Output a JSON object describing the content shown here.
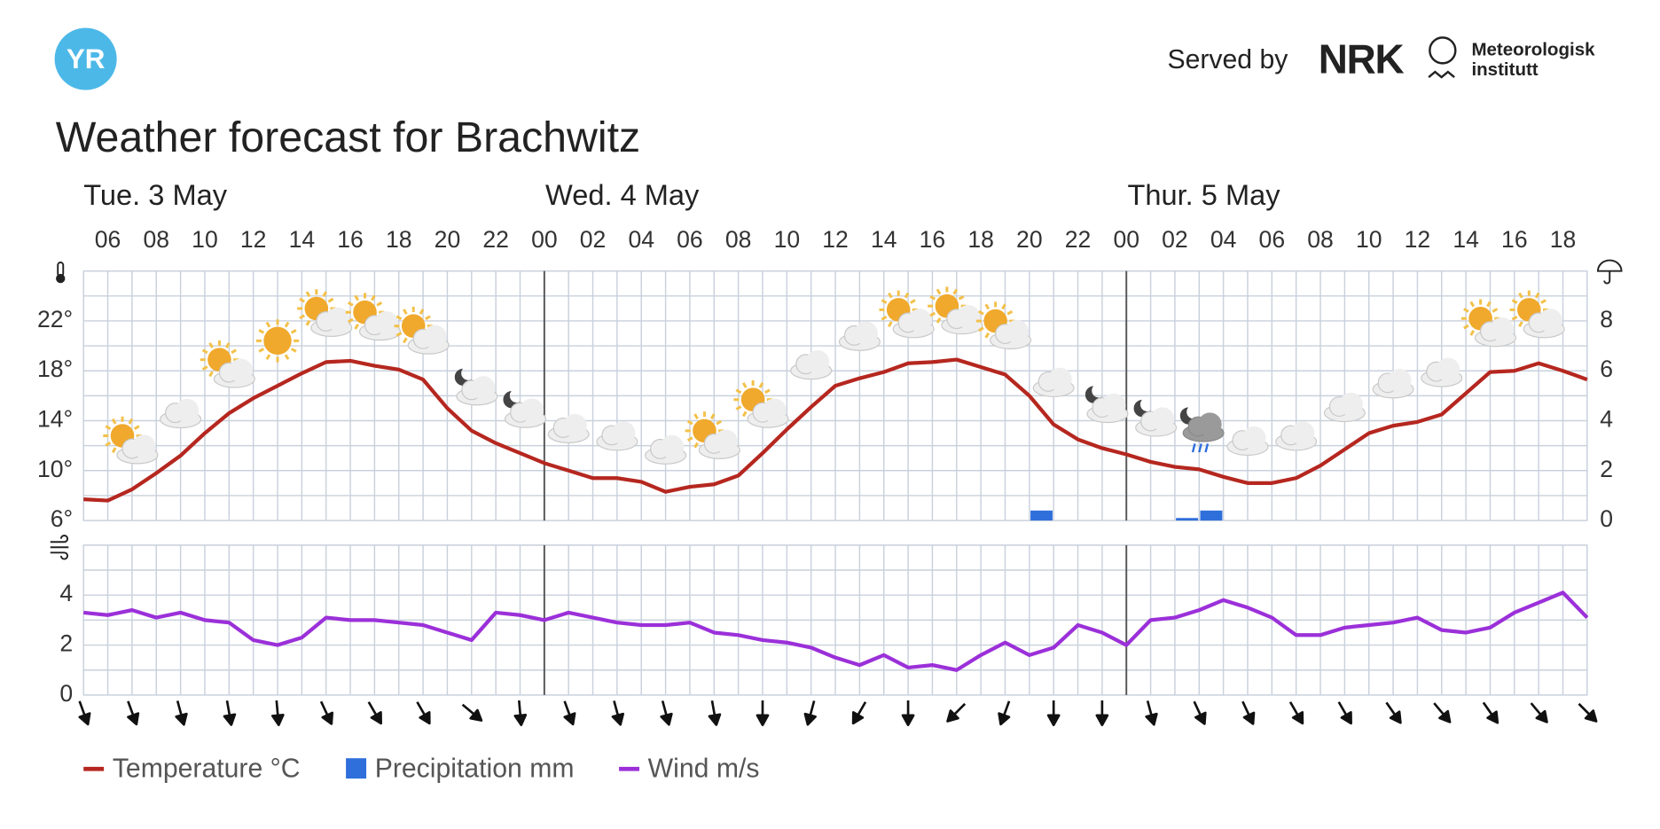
{
  "header": {
    "logo": "YR",
    "served_by": "Served by",
    "nrk": "NRK",
    "met": [
      "Meteorologisk",
      "institutt"
    ]
  },
  "chart_data": {
    "type": "line",
    "title": "Weather forecast for Brachwitz",
    "days": [
      "Tue. 3 May",
      "Wed. 4 May",
      "Thur. 5 May"
    ],
    "categories": [
      null,
      "06",
      null,
      "08",
      null,
      "10",
      null,
      "12",
      null,
      "14",
      null,
      "16",
      null,
      "18",
      null,
      "20",
      null,
      "22",
      null,
      "00",
      null,
      "02",
      null,
      "04",
      null,
      "06",
      null,
      "08",
      null,
      "10",
      null,
      "12",
      null,
      "14",
      null,
      "16",
      null,
      "18",
      null,
      "20",
      null,
      "22",
      null,
      "00",
      null,
      "02",
      null,
      "04",
      null,
      "06",
      null,
      "08",
      null,
      "10",
      null,
      "12",
      null,
      "14",
      null,
      "16",
      null,
      "18",
      null
    ],
    "ylim": [
      6,
      26
    ],
    "yticks": [
      {
        "value": 6,
        "label": "6°"
      },
      {
        "value": 10,
        "label": "10°"
      },
      {
        "value": 14,
        "label": "14°"
      },
      {
        "value": 18,
        "label": "18°"
      },
      {
        "value": 22,
        "label": "22°"
      }
    ],
    "y2lim": [
      0,
      10
    ],
    "y2ticks": [
      0,
      2,
      4,
      6,
      8
    ],
    "grid": true,
    "series": [
      {
        "name": "Temperature °C",
        "color": "#b5271f",
        "values": [
          7.7,
          7.6,
          8.5,
          9.8,
          11.2,
          13.0,
          14.6,
          15.8,
          16.8,
          17.8,
          18.7,
          18.8,
          18.4,
          18.1,
          17.3,
          15.0,
          13.2,
          12.2,
          11.4,
          10.6,
          10.0,
          9.4,
          9.4,
          9.1,
          8.3,
          8.7,
          8.9,
          9.6,
          11.4,
          13.3,
          15.1,
          16.8,
          17.4,
          17.9,
          18.6,
          18.7,
          18.9,
          18.3,
          17.7,
          16.0,
          13.7,
          12.5,
          11.8,
          11.3,
          10.7,
          10.3,
          10.1,
          9.5,
          9.0,
          9.0,
          9.4,
          10.4,
          11.7,
          13.0,
          13.6,
          13.9,
          14.5,
          16.2,
          17.9,
          18.0,
          18.6,
          18.0,
          17.3
        ]
      },
      {
        "name": "Precipitation mm",
        "color": "#2f6fdb",
        "type": "bar",
        "axis": "y2",
        "values": [
          0,
          0,
          0,
          0,
          0,
          0,
          0,
          0,
          0,
          0,
          0,
          0,
          0,
          0,
          0,
          0,
          0,
          0,
          0,
          0,
          0,
          0,
          0,
          0,
          0,
          0,
          0,
          0,
          0,
          0,
          0,
          0,
          0,
          0,
          0,
          0,
          0,
          0,
          0,
          0.4,
          0,
          0,
          0,
          0,
          0,
          0.1,
          0.4,
          0,
          0,
          0,
          0,
          0,
          0,
          0,
          0,
          0,
          0,
          0,
          0,
          0,
          0,
          0,
          0
        ]
      }
    ],
    "wind": {
      "name": "Wind m/s",
      "color": "#9b30d9",
      "ylim": [
        0,
        6
      ],
      "yticks": [
        0,
        2,
        4
      ],
      "values": [
        3.3,
        3.2,
        3.4,
        3.1,
        3.3,
        3.0,
        2.9,
        2.2,
        2.0,
        2.3,
        3.1,
        3.0,
        3.0,
        2.9,
        2.8,
        2.5,
        2.2,
        3.3,
        3.2,
        3.0,
        3.3,
        3.1,
        2.9,
        2.8,
        2.8,
        2.9,
        2.5,
        2.4,
        2.2,
        2.1,
        1.9,
        1.5,
        1.2,
        1.6,
        1.1,
        1.2,
        1.0,
        1.6,
        2.1,
        1.6,
        1.9,
        2.8,
        2.5,
        2.0,
        3.0,
        3.1,
        3.4,
        3.8,
        3.5,
        3.1,
        2.4,
        2.4,
        2.7,
        2.8,
        2.9,
        3.1,
        2.6,
        2.5,
        2.7,
        3.3,
        3.7,
        4.1,
        3.1
      ],
      "direction_deg": [
        160,
        160,
        165,
        170,
        175,
        155,
        150,
        150,
        130,
        175,
        160,
        165,
        165,
        170,
        180,
        195,
        210,
        180,
        225,
        200,
        180,
        180,
        165,
        155,
        155,
        150,
        150,
        145,
        140,
        145,
        140,
        135
      ]
    },
    "symbols": [
      "sun-cloud",
      "cloud",
      "sun-cloud",
      "sun",
      "sun-cloud",
      "sun-cloud",
      "sun-cloud",
      "moon-cloud",
      "moon-cloud",
      "cloud",
      "cloud",
      "cloud",
      "sun-cloud",
      "sun-cloud",
      "cloud",
      "cloud",
      "sun-cloud",
      "sun-cloud",
      "sun-cloud",
      "cloud",
      "moon-cloud",
      "moon-cloud",
      "rain",
      "cloud",
      "cloud",
      "cloud",
      "cloud",
      "cloud",
      "sun-cloud",
      "sun-cloud"
    ]
  }
}
